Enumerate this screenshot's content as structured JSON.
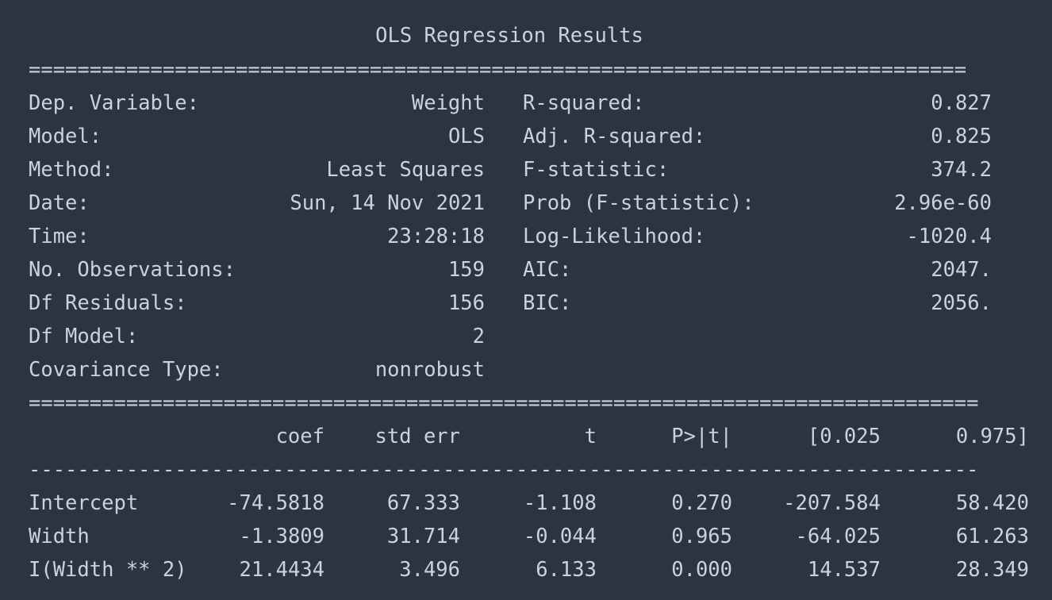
{
  "title": "OLS Regression Results",
  "separator_top": "=============================================================================",
  "separator_mid": "==============================================================================",
  "separator_dash": "------------------------------------------------------------------------------",
  "left_stats": [
    {
      "label": "Dep. Variable:",
      "value": "Weight"
    },
    {
      "label": "Model:",
      "value": "OLS"
    },
    {
      "label": "Method:",
      "value": "Least Squares"
    },
    {
      "label": "Date:",
      "value": "Sun, 14 Nov 2021"
    },
    {
      "label": "Time:",
      "value": "23:28:18"
    },
    {
      "label": "No. Observations:",
      "value": "159"
    },
    {
      "label": "Df Residuals:",
      "value": "156"
    },
    {
      "label": "Df Model:",
      "value": "2"
    },
    {
      "label": "Covariance Type:",
      "value": "nonrobust"
    }
  ],
  "right_stats": [
    {
      "label": "R-squared:",
      "value": "0.827"
    },
    {
      "label": "Adj. R-squared:",
      "value": "0.825"
    },
    {
      "label": "F-statistic:",
      "value": "374.2"
    },
    {
      "label": "Prob (F-statistic):",
      "value": "2.96e-60"
    },
    {
      "label": "Log-Likelihood:",
      "value": "-1020.4"
    },
    {
      "label": "AIC:",
      "value": "2047."
    },
    {
      "label": "BIC:",
      "value": "2056."
    }
  ],
  "coef_table": {
    "headers": [
      "coef",
      "std err",
      "t",
      "P>|t|",
      "[0.025",
      "0.975]"
    ],
    "rows": [
      {
        "name": "Intercept",
        "values": [
          "-74.5818",
          "67.333",
          "-1.108",
          "0.270",
          "-207.584",
          "58.420"
        ]
      },
      {
        "name": "Width",
        "values": [
          "-1.3809",
          "31.714",
          "-0.044",
          "0.965",
          "-64.025",
          "61.263"
        ]
      },
      {
        "name": "I(Width ** 2)",
        "values": [
          "21.4434",
          "3.496",
          "6.133",
          "0.000",
          "14.537",
          "28.349"
        ]
      }
    ]
  }
}
